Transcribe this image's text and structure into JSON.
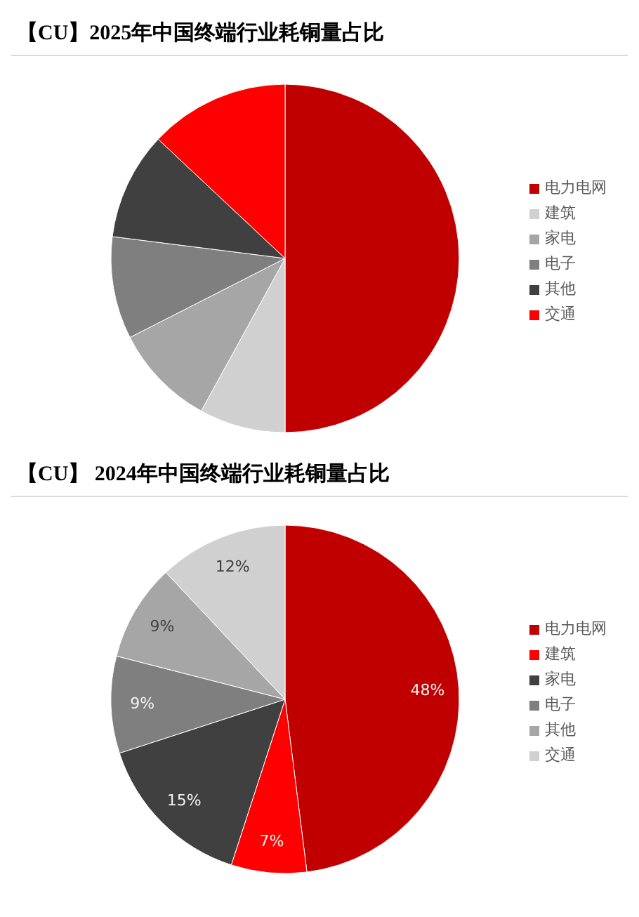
{
  "chart_data": [
    {
      "type": "pie",
      "title": "【CU】2025年中国终端行业耗铜量占比",
      "categories": [
        "电力电网",
        "建筑",
        "家电",
        "电子",
        "其他",
        "交通"
      ],
      "values": [
        50,
        8,
        9.5,
        9.5,
        10,
        13
      ],
      "colors": [
        "#c00000",
        "#d0d0d0",
        "#a6a6a6",
        "#7f7f7f",
        "#404040",
        "#ff0000"
      ],
      "legend": "right"
    },
    {
      "type": "pie",
      "title": "【CU】 2024年中国终端行业耗铜量占比",
      "categories": [
        "电力电网",
        "建筑",
        "家电",
        "电子",
        "其他",
        "交通"
      ],
      "values": [
        48,
        7,
        15,
        9,
        9,
        12
      ],
      "colors": [
        "#c00000",
        "#ff0000",
        "#404040",
        "#7f7f7f",
        "#a6a6a6",
        "#d0d0d0"
      ],
      "legend": "right",
      "value_labels": [
        "48%",
        "7%",
        "15%",
        "9%",
        "9%",
        "12%"
      ]
    }
  ]
}
